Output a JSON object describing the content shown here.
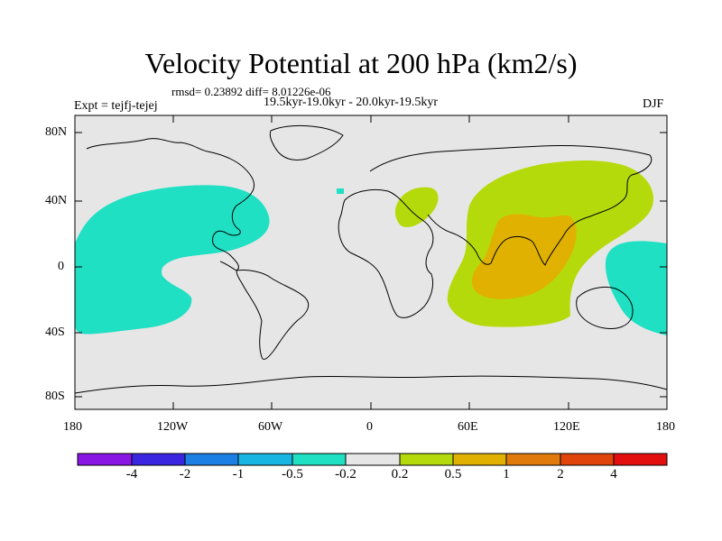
{
  "title": "Velocity Potential at 200 hPa (km2/s)",
  "stats": "rmsd= 0.23892 diff= 8.01226e-06",
  "experiment": "Expt = tejfj-tejej",
  "period": "19.5kyr-19.0kyr - 20.0kyr-19.5kyr",
  "season": "DJF",
  "y_ticks": [
    "80N",
    "40N",
    "0",
    "40S",
    "80S"
  ],
  "x_ticks": [
    "180",
    "120W",
    "60W",
    "0",
    "60E",
    "120E",
    "180"
  ],
  "colorbar": {
    "labels": [
      "-4",
      "-2",
      "-1",
      "-0.5",
      "-0.2",
      "0.2",
      "0.5",
      "1",
      "2",
      "4"
    ],
    "colors": [
      "#8a16e4",
      "#3a26e0",
      "#1c7fe4",
      "#18b4e2",
      "#1fe0c3",
      "#e6e6e6",
      "#b5da0b",
      "#e0b100",
      "#e07a0a",
      "#e0440a",
      "#e30e0e"
    ]
  },
  "map_colors": {
    "background": "#e6e6e6",
    "negative": "#1fe0c3",
    "positive": "#b5da0b",
    "strong_positive": "#e0b100"
  }
}
